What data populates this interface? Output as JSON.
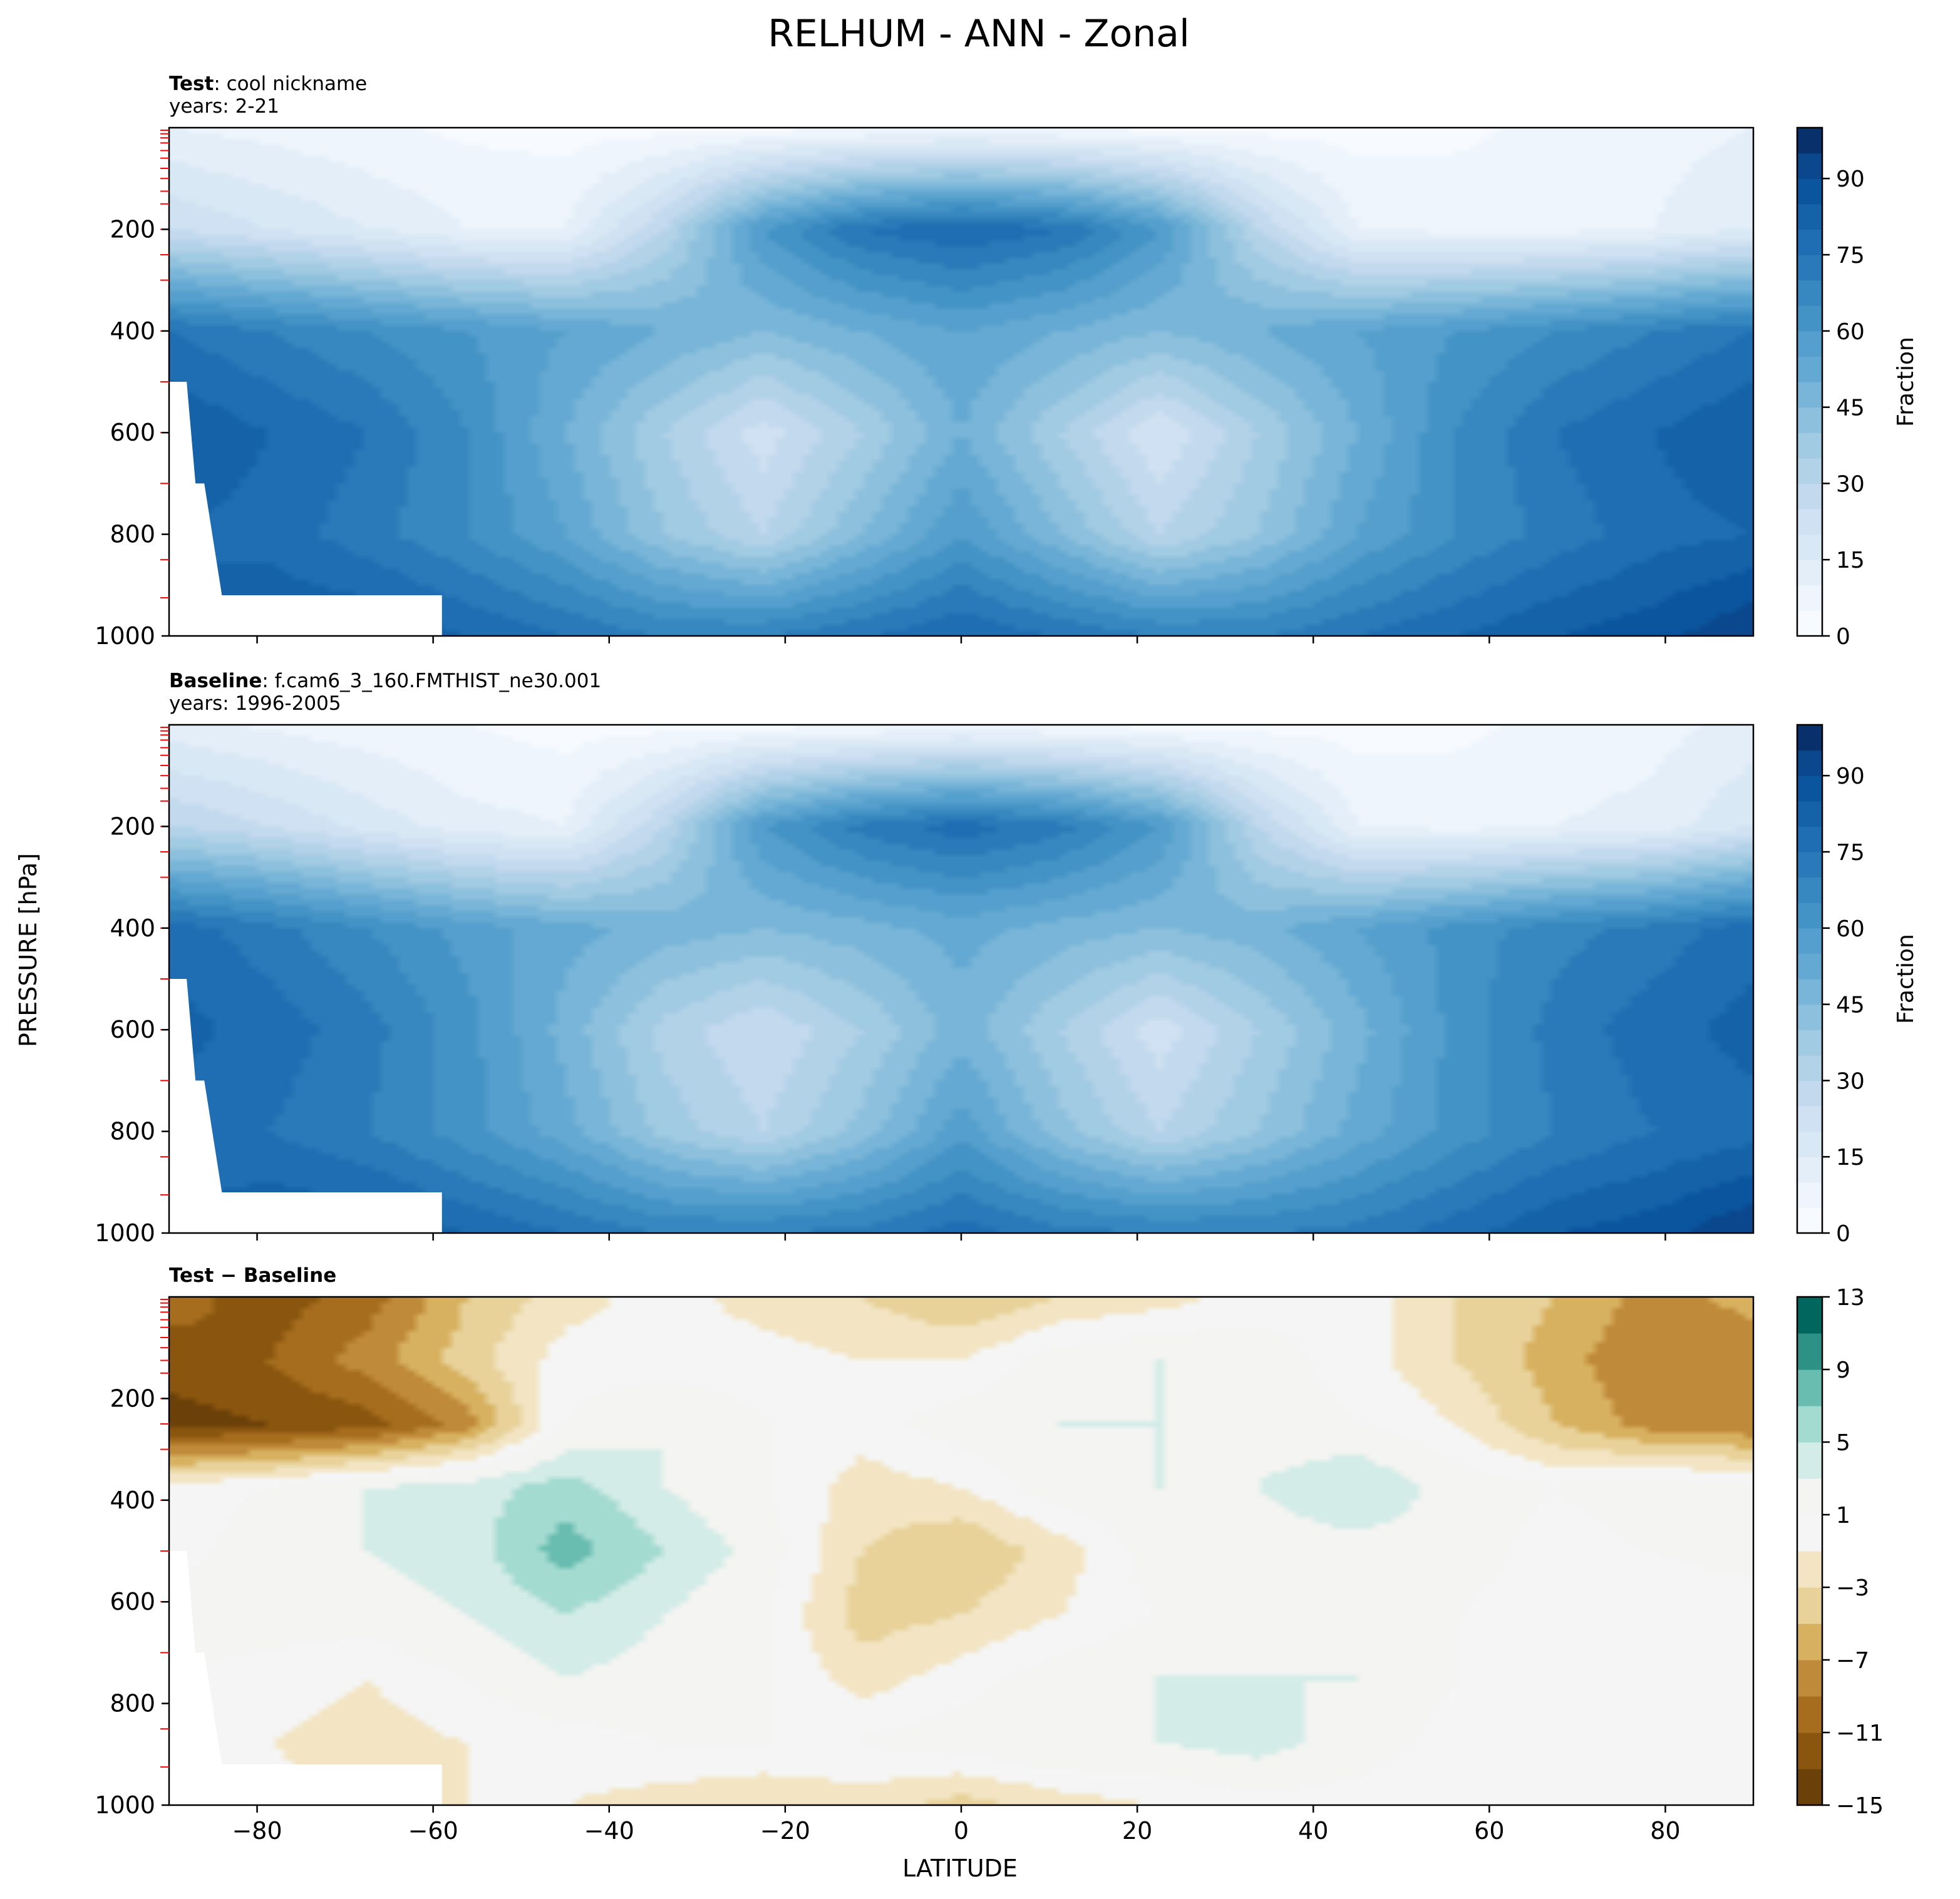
{
  "figure": {
    "title": "RELHUM - ANN - Zonal",
    "shared_ylabel": "PRESSURE [hPa]",
    "shared_xlabel": "LATITUDE"
  },
  "chart_data": [
    {
      "type": "heatmap",
      "panel": "test",
      "title_bold": "Test",
      "title_rest": ": cool nickname",
      "subtitle": "years: 2-21",
      "x_range": [
        -90,
        90
      ],
      "y_range": [
        1000,
        0
      ],
      "y_inverted": true,
      "x_ticks": [
        -80,
        -60,
        -40,
        -20,
        0,
        20,
        40,
        60,
        80
      ],
      "y_ticks": [
        200,
        400,
        600,
        800,
        1000
      ],
      "colorbar": {
        "label": "Fraction",
        "min": 0,
        "max": 100,
        "ticks": [
          0,
          15,
          30,
          45,
          60,
          75,
          90
        ],
        "levels": 20,
        "colors": [
          "#f7fbff",
          "#eef5fc",
          "#e3eef9",
          "#d9e8f5",
          "#cfe1f2",
          "#c2d9ee",
          "#b2d2e8",
          "#a1cae3",
          "#8dc0dd",
          "#78b5d8",
          "#64a9d3",
          "#549fcd",
          "#4493c6",
          "#3787c0",
          "#2a7ab9",
          "#1f6eb3",
          "#1562a9",
          "#0b559f",
          "#0a478c",
          "#08306b"
        ]
      },
      "field": [
        [
          10,
          8,
          6,
          4,
          3,
          3,
          3,
          4,
          5,
          4,
          3,
          3,
          3,
          4,
          6,
          8,
          10
        ],
        [
          25,
          20,
          15,
          10,
          10,
          30,
          60,
          75,
          80,
          75,
          60,
          30,
          10,
          8,
          8,
          10,
          15
        ],
        [
          75,
          70,
          65,
          60,
          55,
          50,
          45,
          50,
          55,
          50,
          45,
          50,
          55,
          60,
          65,
          70,
          75
        ],
        [
          85,
          80,
          75,
          65,
          50,
          35,
          22,
          35,
          50,
          35,
          20,
          35,
          50,
          65,
          75,
          80,
          85
        ],
        [
          80,
          78,
          72,
          65,
          55,
          40,
          30,
          45,
          60,
          45,
          30,
          40,
          55,
          65,
          72,
          78,
          80
        ],
        [
          80,
          85,
          85,
          80,
          75,
          70,
          70,
          75,
          80,
          75,
          70,
          70,
          75,
          80,
          85,
          88,
          95
        ]
      ]
    },
    {
      "type": "heatmap",
      "panel": "baseline",
      "title_bold": "Baseline",
      "title_rest": ": f.cam6_3_160.FMTHIST_ne30.001",
      "subtitle": "years: 1996-2005",
      "x_range": [
        -90,
        90
      ],
      "y_range": [
        1000,
        0
      ],
      "y_inverted": true,
      "x_ticks": [
        -80,
        -60,
        -40,
        -20,
        0,
        20,
        40,
        60,
        80
      ],
      "y_ticks": [
        200,
        400,
        600,
        800,
        1000
      ],
      "colorbar": {
        "label": "Fraction",
        "min": 0,
        "max": 100,
        "ticks": [
          0,
          15,
          30,
          45,
          60,
          75,
          90
        ],
        "levels": 20,
        "colors": [
          "#f7fbff",
          "#eef5fc",
          "#e3eef9",
          "#d9e8f5",
          "#cfe1f2",
          "#c2d9ee",
          "#b2d2e8",
          "#a1cae3",
          "#8dc0dd",
          "#78b5d8",
          "#64a9d3",
          "#549fcd",
          "#4493c6",
          "#3787c0",
          "#2a7ab9",
          "#1f6eb3",
          "#1562a9",
          "#0b559f",
          "#0a478c",
          "#08306b"
        ]
      },
      "field": [
        [
          12,
          9,
          7,
          5,
          3,
          3,
          3,
          4,
          5,
          4,
          3,
          3,
          3,
          4,
          6,
          8,
          12
        ],
        [
          30,
          25,
          18,
          12,
          10,
          30,
          60,
          72,
          78,
          72,
          60,
          30,
          10,
          8,
          10,
          12,
          20
        ],
        [
          78,
          72,
          65,
          58,
          52,
          48,
          45,
          48,
          52,
          48,
          45,
          48,
          55,
          62,
          68,
          72,
          78
        ],
        [
          82,
          78,
          72,
          62,
          48,
          33,
          25,
          35,
          48,
          35,
          22,
          35,
          48,
          62,
          72,
          78,
          82
        ],
        [
          78,
          75,
          70,
          62,
          52,
          38,
          30,
          42,
          58,
          42,
          30,
          40,
          52,
          62,
          70,
          75,
          78
        ],
        [
          80,
          85,
          85,
          80,
          75,
          70,
          70,
          72,
          78,
          72,
          70,
          70,
          72,
          78,
          85,
          88,
          95
        ]
      ]
    },
    {
      "type": "heatmap",
      "panel": "difference",
      "title_bold": "Test − Baseline",
      "x_range": [
        -90,
        90
      ],
      "y_range": [
        1000,
        0
      ],
      "y_inverted": true,
      "x_ticks": [
        -80,
        -60,
        -40,
        -20,
        0,
        20,
        40,
        60,
        80
      ],
      "y_ticks": [
        200,
        400,
        600,
        800,
        1000
      ],
      "colorbar": {
        "label": "",
        "min": -15,
        "max": 13,
        "ticks": [
          -15,
          -11,
          -7,
          -3,
          1,
          5,
          9,
          13
        ],
        "levels": 14,
        "colors": [
          "#6b4109",
          "#8a560f",
          "#a66d1e",
          "#bf8a3a",
          "#d7b15f",
          "#e8d29a",
          "#f3e5c3",
          "#f5f5f5",
          "#f4f4f2",
          "#d3ece7",
          "#a4dbd1",
          "#68bcb0",
          "#2e9186",
          "#01665e"
        ]
      },
      "field": [
        [
          -10,
          -12,
          -10,
          -5,
          -2,
          0,
          -2,
          -3,
          -5,
          -3,
          -2,
          0,
          0,
          -3,
          -5,
          -8,
          -6
        ],
        [
          -12,
          -11,
          -8,
          -4,
          0,
          0,
          0,
          -1,
          -1,
          2,
          3,
          2,
          0,
          -3,
          -6,
          -9,
          -9
        ],
        [
          -14,
          -13,
          -12,
          -8,
          1,
          3,
          1,
          0,
          2,
          3,
          3,
          2,
          1,
          -1,
          -5,
          -8,
          -9
        ],
        [
          0,
          1,
          3,
          4,
          6,
          3,
          1,
          -2,
          -1,
          2,
          3,
          3,
          5,
          2,
          1,
          2,
          2
        ],
        [
          0,
          2,
          3,
          4,
          8,
          5,
          2,
          -3,
          -5,
          -2,
          2,
          2,
          2,
          2,
          0,
          1,
          2
        ],
        [
          2,
          2,
          2,
          3,
          5,
          3,
          1,
          -4,
          -3,
          -1,
          1,
          2,
          2,
          1,
          -1,
          -1,
          -1
        ],
        [
          1,
          0,
          -1,
          1,
          3,
          2,
          1,
          -2,
          0,
          2,
          3,
          3,
          3,
          1,
          -1,
          -1,
          -1
        ],
        [
          0,
          -1,
          -2,
          -1,
          0,
          1,
          1,
          1,
          2,
          3,
          3,
          4,
          2,
          0,
          0,
          -1,
          -1
        ],
        [
          0,
          0,
          -2,
          -1,
          -1,
          -2,
          -3,
          -2,
          -4,
          -2,
          -1,
          0,
          0,
          -1,
          0,
          -1,
          -1
        ]
      ]
    }
  ]
}
